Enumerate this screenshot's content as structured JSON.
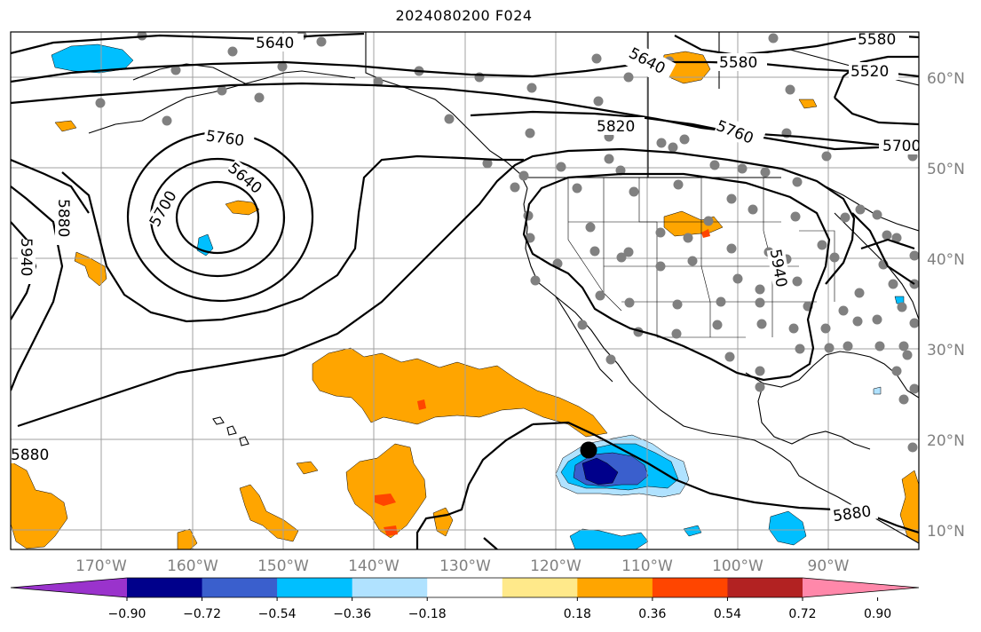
{
  "title": "2024080200 F024",
  "lat_labels": [
    {
      "text": "60°N"
    },
    {
      "text": "50°N"
    },
    {
      "text": "40°N"
    },
    {
      "text": "30°N"
    },
    {
      "text": "20°N"
    },
    {
      "text": "10°N"
    }
  ],
  "lon_labels": [
    {
      "text": "170°W"
    },
    {
      "text": "160°W"
    },
    {
      "text": "150°W"
    },
    {
      "text": "140°W"
    },
    {
      "text": "130°W"
    },
    {
      "text": "120°W"
    },
    {
      "text": "110°W"
    },
    {
      "text": "100°W"
    },
    {
      "text": "90°W"
    }
  ],
  "contour_labels": [
    "5640",
    "5640",
    "5580",
    "5580",
    "5520",
    "5820",
    "5760",
    "5700",
    "5760",
    "5700",
    "5640",
    "5880",
    "5940",
    "5940",
    "5880",
    "5880"
  ],
  "colorbar": {
    "colors": [
      "#9a33cc",
      "#00008b",
      "#3a5fcd",
      "#00bfff",
      "#b0e2ff",
      "#ffffff",
      "#ffe98a",
      "#ffa500",
      "#ff4500",
      "#b22222",
      "#ff88aa"
    ],
    "ticks": [
      "−0.90",
      "−0.72",
      "−0.54",
      "−0.36",
      "−0.18",
      "0.18",
      "0.36",
      "0.54",
      "0.72",
      "0.90"
    ]
  },
  "colors": {
    "gridline": "#a0a0a0",
    "coastline": "#000000",
    "station_dot": "#808080",
    "contour": "#000000"
  }
}
